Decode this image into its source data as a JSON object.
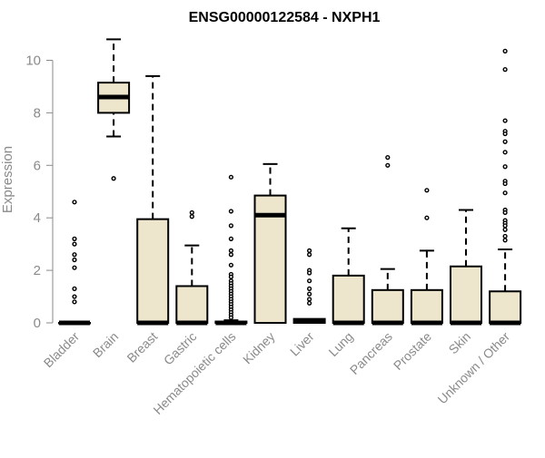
{
  "chart_data": {
    "type": "boxplot",
    "title": "ENSG00000122584 - NXPH1",
    "ylabel": "Expression",
    "xlabel": "",
    "ylim": [
      0,
      10.6
    ],
    "yticks": [
      0,
      2,
      4,
      6,
      8,
      10
    ],
    "grid": false,
    "legend": "none",
    "colors": {
      "box_fill": "#ede6cd",
      "box_stroke": "#000000"
    },
    "categories": [
      "Bladder",
      "Brain",
      "Breast",
      "Gastric",
      "Hematopoietic cells",
      "Kidney",
      "Liver",
      "Lung",
      "Pancreas",
      "Prostate",
      "Skin",
      "Unknown / Other"
    ],
    "boxes": [
      {
        "name": "Bladder",
        "q1": 0,
        "median": 0,
        "q3": 0,
        "whisker_low": 0,
        "whisker_high": 0,
        "outliers": [
          4.6,
          3.2,
          3.0,
          2.6,
          2.4,
          2.1,
          1.3,
          1.0,
          0.8
        ]
      },
      {
        "name": "Brain",
        "q1": 8.0,
        "median": 8.6,
        "q3": 9.15,
        "whisker_low": 7.1,
        "whisker_high": 10.8,
        "outliers": [
          5.5
        ]
      },
      {
        "name": "Breast",
        "q1": 0,
        "median": 0,
        "q3": 3.95,
        "whisker_low": 0,
        "whisker_high": 9.4,
        "outliers": []
      },
      {
        "name": "Gastric",
        "q1": 0,
        "median": 0,
        "q3": 1.4,
        "whisker_low": 0,
        "whisker_high": 2.95,
        "outliers": [
          4.2,
          4.05
        ]
      },
      {
        "name": "Hematopoietic cells",
        "q1": 0,
        "median": 0,
        "q3": 0.05,
        "whisker_low": 0,
        "whisker_high": 0.1,
        "outliers": [
          5.55,
          4.25,
          3.7,
          3.2,
          2.75,
          2.6,
          2.2,
          1.85,
          1.75,
          1.6,
          1.5,
          1.4,
          1.3,
          1.2,
          1.1,
          1.0,
          0.9,
          0.8,
          0.7,
          0.6,
          0.5,
          0.4,
          0.3,
          0.2
        ]
      },
      {
        "name": "Kidney",
        "q1": 0,
        "median": 4.1,
        "q3": 4.85,
        "whisker_low": 0,
        "whisker_high": 6.05,
        "outliers": []
      },
      {
        "name": "Liver",
        "q1": 0,
        "median": 0.05,
        "q3": 0.15,
        "whisker_low": 0,
        "whisker_high": 0.15,
        "outliers": [
          2.75,
          2.6,
          2.0,
          1.9,
          1.6,
          1.3,
          1.1,
          0.9,
          0.75
        ]
      },
      {
        "name": "Lung",
        "q1": 0,
        "median": 0,
        "q3": 1.8,
        "whisker_low": 0,
        "whisker_high": 3.6,
        "outliers": []
      },
      {
        "name": "Pancreas",
        "q1": 0,
        "median": 0,
        "q3": 1.25,
        "whisker_low": 0,
        "whisker_high": 2.05,
        "outliers": [
          6.3,
          6.0
        ]
      },
      {
        "name": "Prostate",
        "q1": 0,
        "median": 0,
        "q3": 1.25,
        "whisker_low": 0,
        "whisker_high": 2.75,
        "outliers": [
          5.05,
          4.0
        ]
      },
      {
        "name": "Skin",
        "q1": 0,
        "median": 0,
        "q3": 2.15,
        "whisker_low": 0,
        "whisker_high": 4.3,
        "outliers": []
      },
      {
        "name": "Unknown / Other",
        "q1": 0,
        "median": 0,
        "q3": 1.2,
        "whisker_low": 0,
        "whisker_high": 2.8,
        "outliers": [
          10.35,
          9.65,
          7.7,
          7.3,
          7.2,
          6.9,
          6.5,
          5.95,
          5.4,
          5.3,
          4.95,
          4.3,
          4.2,
          3.9,
          3.8,
          3.7,
          3.55,
          3.3,
          3.15
        ]
      }
    ]
  }
}
